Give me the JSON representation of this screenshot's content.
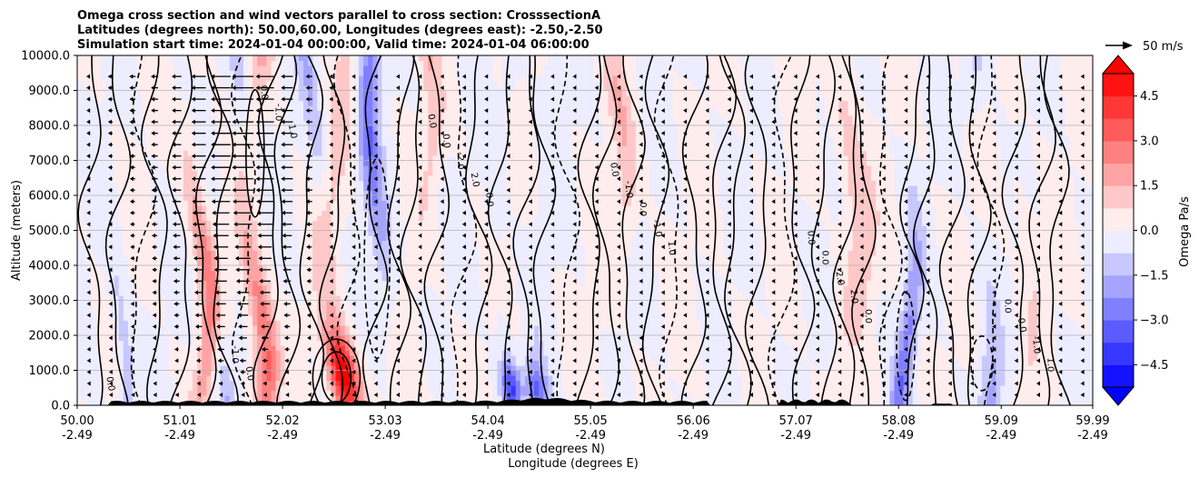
{
  "chart_data": {
    "type": "heatmap",
    "title_lines": [
      "Omega cross section and wind vectors parallel to cross section: CrosssectionA",
      "Latitudes (degrees north): 50.00,60.00, Longitudes (degrees east): -2.50,-2.50",
      "Simulation start time: 2024-01-04 00:00:00, Valid time: 2024-01-04 06:00:00"
    ],
    "xlabel_line1": "Latitude (degrees N)",
    "xlabel_line2": "Longitude (degrees E)",
    "ylabel": "Altitude (meters)",
    "x_ticks": [
      {
        "lat": "50.00",
        "lon": "-2.49"
      },
      {
        "lat": "51.01",
        "lon": "-2.49"
      },
      {
        "lat": "52.02",
        "lon": "-2.49"
      },
      {
        "lat": "53.03",
        "lon": "-2.49"
      },
      {
        "lat": "54.04",
        "lon": "-2.49"
      },
      {
        "lat": "55.05",
        "lon": "-2.49"
      },
      {
        "lat": "56.06",
        "lon": "-2.49"
      },
      {
        "lat": "57.07",
        "lon": "-2.49"
      },
      {
        "lat": "58.08",
        "lon": "-2.49"
      },
      {
        "lat": "59.09",
        "lon": "-2.49"
      },
      {
        "lat": "59.99",
        "lon": "-2.49"
      }
    ],
    "xlim": [
      50.0,
      59.99
    ],
    "ylim": [
      0,
      10000
    ],
    "y_ticks": [
      "0.0",
      "1000.0",
      "2000.0",
      "3000.0",
      "4000.0",
      "5000.0",
      "6000.0",
      "7000.0",
      "8000.0",
      "9000.0",
      "10000.0"
    ],
    "grid": "horizontal",
    "colorbar": {
      "label": "Omega Pa/s",
      "range": [
        -5.25,
        5.25
      ],
      "tick_values": [
        4.5,
        3.0,
        1.5,
        0.0,
        -1.5,
        -3.0,
        -4.5
      ],
      "tick_labels": [
        "4.5",
        "3.0",
        "1.5",
        "0.0",
        "−1.5",
        "−3.0",
        "−4.5"
      ],
      "extend": "both",
      "colors": {
        "positive": "#ff0000",
        "zero": "#ffffff",
        "negative": "#0000ff"
      }
    },
    "quiver_key": {
      "label": "50 m/s",
      "reference_speed": 50
    },
    "contour_labels": [
      "0.0",
      "0.0",
      "0.0",
      "1.0",
      "1.0",
      "1.0",
      "2.0",
      "2.0",
      "-1.0",
      "-1.0",
      "-1.0",
      "-2.0",
      "-2.0",
      "0.0",
      "0.0",
      "0.0",
      "0.0",
      "0.0",
      "0.0",
      "-1.0",
      "0.0",
      "0.0",
      "0.0",
      "-1.0",
      "0.0"
    ],
    "features": {
      "positive_columns": [
        {
          "lat": 51.2,
          "strength": 2.6
        },
        {
          "lat": 51.75,
          "strength": 3.4
        },
        {
          "lat": 52.55,
          "strength": 4.0
        },
        {
          "lat": 53.4,
          "strength": 1.2
        },
        {
          "lat": 55.3,
          "strength": 1.3
        },
        {
          "lat": 57.6,
          "strength": 1.5
        },
        {
          "lat": 59.3,
          "strength": 0.7
        }
      ],
      "negative_columns": [
        {
          "lat": 50.4,
          "strength": -1.4
        },
        {
          "lat": 51.5,
          "strength": -2.0
        },
        {
          "lat": 52.3,
          "strength": -1.6
        },
        {
          "lat": 52.95,
          "strength": -2.8
        },
        {
          "lat": 54.2,
          "strength": -2.5
        },
        {
          "lat": 54.6,
          "strength": -2.0
        },
        {
          "lat": 58.15,
          "strength": -2.6
        },
        {
          "lat": 58.9,
          "strength": -2.0
        }
      ]
    },
    "terrain_color": "#000000"
  }
}
